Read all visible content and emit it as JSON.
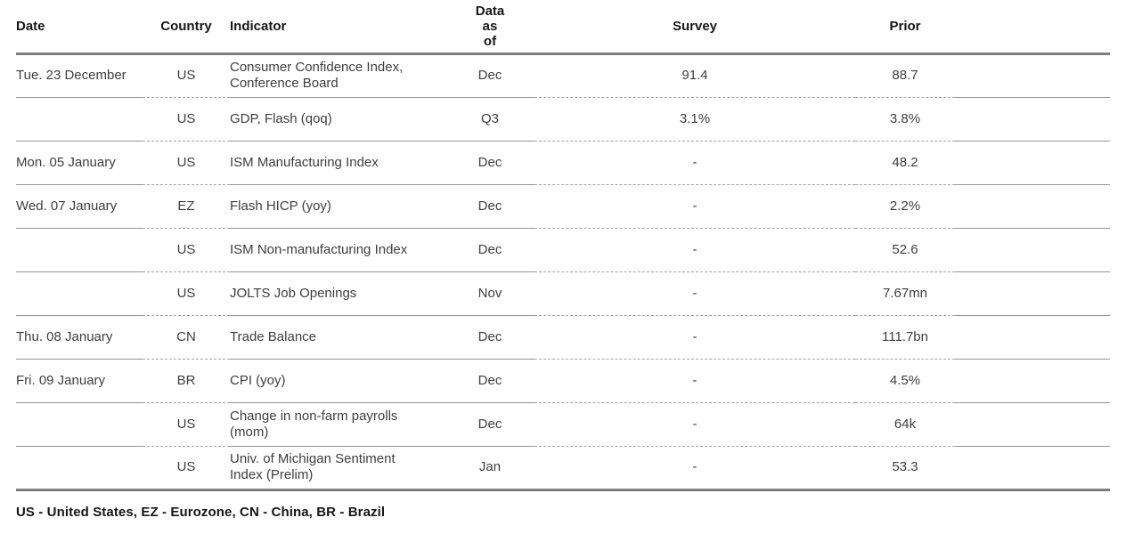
{
  "table": {
    "headers": {
      "date": "Date",
      "country": "Country",
      "indicator": "Indicator",
      "data_as_of_lines": [
        "Data",
        "as",
        "of"
      ],
      "survey": "Survey",
      "prior": "Prior"
    },
    "rows": [
      {
        "date": "Tue. 23 December",
        "country": "US",
        "indicator": "Consumer Confidence Index, Conference Board",
        "data_as_of": "Dec",
        "survey": "91.4",
        "prior": "88.7"
      },
      {
        "date": "",
        "country": "US",
        "indicator": "GDP, Flash (qoq)",
        "data_as_of": "Q3",
        "survey": "3.1%",
        "prior": "3.8%"
      },
      {
        "date": "Mon. 05 January",
        "country": "US",
        "indicator": "ISM Manufacturing Index",
        "data_as_of": "Dec",
        "survey": "-",
        "prior": "48.2"
      },
      {
        "date": "Wed. 07 January",
        "country": "EZ",
        "indicator": "Flash HICP (yoy)",
        "data_as_of": "Dec",
        "survey": "-",
        "prior": "2.2%"
      },
      {
        "date": "",
        "country": "US",
        "indicator": "ISM Non-manufacturing Index",
        "data_as_of": "Dec",
        "survey": "-",
        "prior": "52.6"
      },
      {
        "date": "",
        "country": "US",
        "indicator": "JOLTS Job Openings",
        "data_as_of": "Nov",
        "survey": "-",
        "prior": "7.67mn"
      },
      {
        "date": "Thu. 08 January",
        "country": "CN",
        "indicator": "Trade Balance",
        "data_as_of": "Dec",
        "survey": "-",
        "prior": "111.7bn"
      },
      {
        "date": "Fri. 09 January",
        "country": "BR",
        "indicator": "CPI (yoy)",
        "data_as_of": "Dec",
        "survey": "-",
        "prior": "4.5%"
      },
      {
        "date": "",
        "country": "US",
        "indicator": "Change in non-farm payrolls (mom)",
        "data_as_of": "Dec",
        "survey": "-",
        "prior": "64k"
      },
      {
        "date": "",
        "country": "US",
        "indicator": "Univ. of Michigan Sentiment Index (Prelim)",
        "data_as_of": "Jan",
        "survey": "-",
        "prior": "53.3"
      }
    ]
  },
  "footnote": "US - United States, EZ - Eurozone, CN - China, BR - Brazil",
  "colors": {
    "background": "#ffffff",
    "heading_text": "#161616",
    "body_text": "#3e3e3e",
    "thick_rule": "#7d7d7d",
    "thin_rule": "#949494"
  }
}
